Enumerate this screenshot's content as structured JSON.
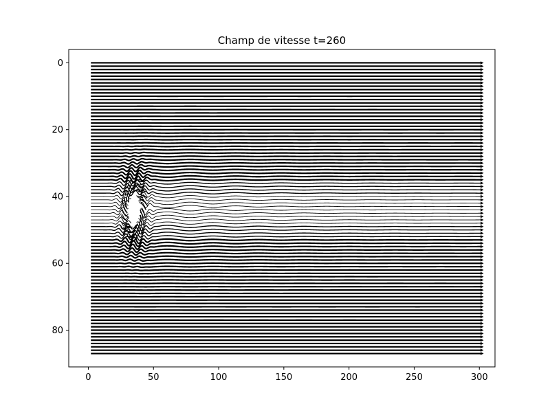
{
  "figure": {
    "background": "#ffffff"
  },
  "chart_data": {
    "type": "quiver",
    "title": "Champ de vitesse t=260",
    "xlabel": "",
    "ylabel": "",
    "xlim": [
      -15,
      312
    ],
    "ylim": [
      91,
      -4
    ],
    "y_axis_inverted": true,
    "grid": false,
    "legend": "none",
    "xticks": [
      0,
      50,
      100,
      150,
      200,
      250,
      300
    ],
    "yticks": [
      0,
      20,
      40,
      60,
      80
    ],
    "field": {
      "x_range": [
        0,
        300
      ],
      "y_range": [
        0,
        87
      ],
      "row_spacing": 1,
      "flow_direction": "+x",
      "obstacle_center": [
        35,
        44
      ],
      "obstacle_radius": 8,
      "wake_extent_x": 160,
      "arrow_color": "#000000"
    }
  }
}
